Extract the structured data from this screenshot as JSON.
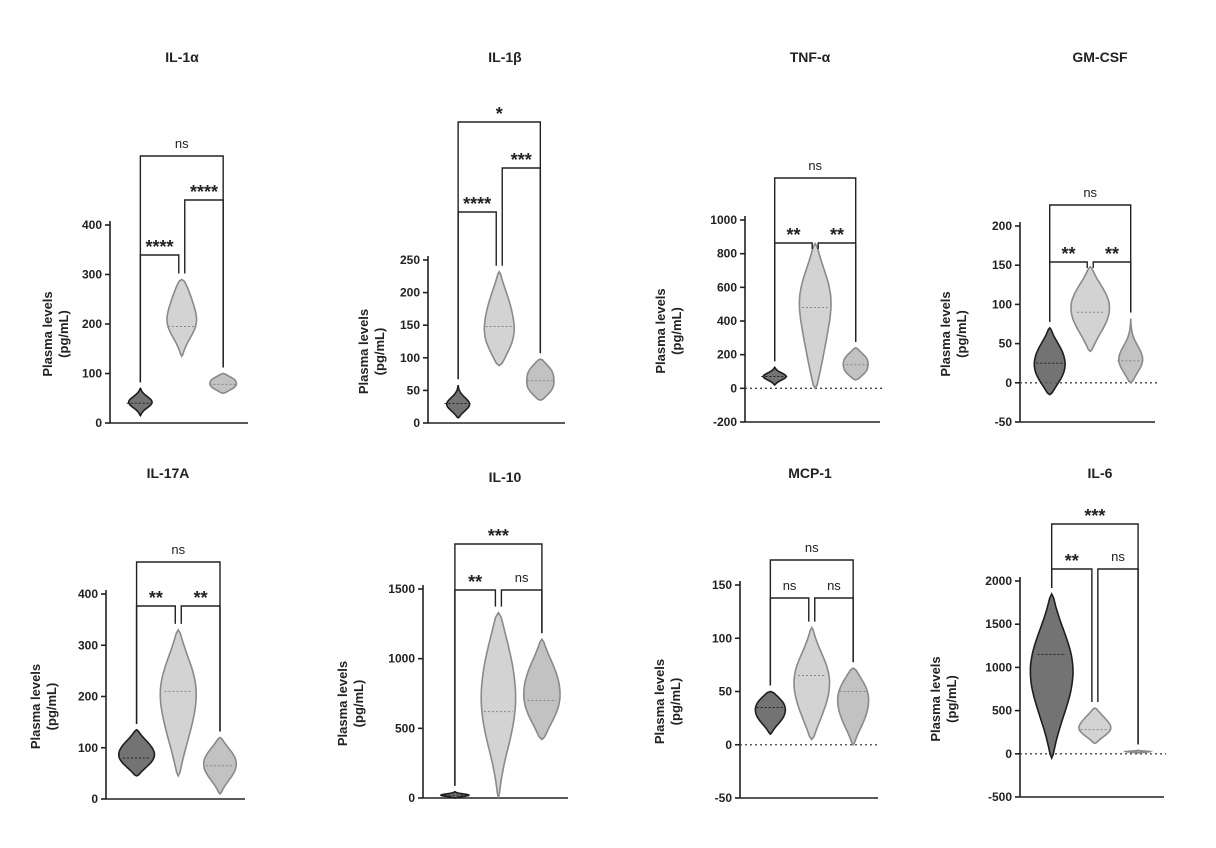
{
  "chart_data": [
    {
      "type": "violin",
      "title": "IL-1α",
      "ylabel_lines": [
        "Plasma levels",
        "(pg/mL)"
      ],
      "ylim": [
        0,
        400
      ],
      "yticks": [
        0,
        100,
        200,
        300,
        400
      ],
      "zero_line": false,
      "groups": [
        {
          "color": "#5a5a5a",
          "min": 15,
          "max": 70,
          "median": 40,
          "modes": [
            42
          ],
          "width": [
            0.35
          ]
        },
        {
          "color": "#c0c0c0",
          "min": 135,
          "max": 290,
          "median": 195,
          "modes": [
            200,
            265
          ],
          "width": [
            0.4,
            0.22
          ]
        },
        {
          "color": "#a8a8a8",
          "min": 60,
          "max": 100,
          "median": 78,
          "modes": [
            72,
            88
          ],
          "width": [
            0.3,
            0.3
          ]
        }
      ],
      "comparisons": [
        {
          "from": 1,
          "to": 2,
          "label": "****"
        },
        {
          "from": 2,
          "to": 3,
          "label": "****"
        },
        {
          "from": 1,
          "to": 3,
          "label": "ns"
        }
      ]
    },
    {
      "type": "violin",
      "title": "IL-1β",
      "ylabel_lines": [
        "Plasma levels",
        "(pg/mL)"
      ],
      "ylim": [
        0,
        250
      ],
      "yticks": [
        0,
        50,
        100,
        150,
        200,
        250
      ],
      "zero_line": false,
      "groups": [
        {
          "color": "#5a5a5a",
          "min": 8,
          "max": 58,
          "median": 30,
          "modes": [
            28
          ],
          "width": [
            0.35
          ]
        },
        {
          "color": "#c0c0c0",
          "min": 88,
          "max": 232,
          "median": 148,
          "modes": [
            128,
            185
          ],
          "width": [
            0.4,
            0.25
          ]
        },
        {
          "color": "#a8a8a8",
          "min": 35,
          "max": 98,
          "median": 65,
          "modes": [
            52,
            80
          ],
          "width": [
            0.35,
            0.33
          ]
        }
      ],
      "comparisons": [
        {
          "from": 1,
          "to": 2,
          "label": "****"
        },
        {
          "from": 2,
          "to": 3,
          "label": "***"
        },
        {
          "from": 1,
          "to": 3,
          "label": "*"
        }
      ]
    },
    {
      "type": "violin",
      "title": "TNF-α",
      "ylabel_lines": [
        "Plasma levels",
        "(pg/mL)"
      ],
      "ylim": [
        -200,
        1000
      ],
      "yticks": [
        -200,
        0,
        200,
        400,
        600,
        800,
        1000
      ],
      "zero_line": true,
      "groups": [
        {
          "color": "#5a5a5a",
          "min": 20,
          "max": 125,
          "median": 70,
          "modes": [
            70
          ],
          "width": [
            0.35
          ]
        },
        {
          "color": "#c0c0c0",
          "min": 0,
          "max": 860,
          "median": 480,
          "modes": [
            200,
            560
          ],
          "width": [
            0.22,
            0.45
          ]
        },
        {
          "color": "#a8a8a8",
          "min": 50,
          "max": 240,
          "median": 140,
          "modes": [
            100,
            180
          ],
          "width": [
            0.3,
            0.3
          ]
        }
      ],
      "comparisons": [
        {
          "from": 1,
          "to": 2,
          "label": "**"
        },
        {
          "from": 2,
          "to": 3,
          "label": "**"
        },
        {
          "from": 1,
          "to": 3,
          "label": "ns"
        }
      ]
    },
    {
      "type": "violin",
      "title": "GM-CSF",
      "ylabel_lines": [
        "Plasma levels",
        "(pg/mL)"
      ],
      "ylim": [
        -50,
        200
      ],
      "yticks": [
        -50,
        0,
        50,
        100,
        150,
        200
      ],
      "zero_line": true,
      "groups": [
        {
          "color": "#5a5a5a",
          "min": -15,
          "max": 70,
          "median": 25,
          "modes": [
            10,
            40
          ],
          "width": [
            0.35,
            0.3
          ]
        },
        {
          "color": "#c0c0c0",
          "min": 40,
          "max": 148,
          "median": 90,
          "modes": [
            75,
            110
          ],
          "width": [
            0.35,
            0.42
          ]
        },
        {
          "color": "#a8a8a8",
          "min": 0,
          "max": 82,
          "median": 28,
          "modes": [
            28
          ],
          "width": [
            0.38
          ]
        }
      ],
      "comparisons": [
        {
          "from": 1,
          "to": 2,
          "label": "**"
        },
        {
          "from": 2,
          "to": 3,
          "label": "**"
        },
        {
          "from": 1,
          "to": 3,
          "label": "ns"
        }
      ]
    },
    {
      "type": "violin",
      "title": "IL-17A",
      "ylabel_lines": [
        "Plasma levels",
        "(pg/mL)"
      ],
      "ylim": [
        0,
        400
      ],
      "yticks": [
        0,
        100,
        200,
        300,
        400
      ],
      "zero_line": false,
      "groups": [
        {
          "color": "#5a5a5a",
          "min": 45,
          "max": 135,
          "median": 80,
          "modes": [
            75,
            105
          ],
          "width": [
            0.4,
            0.3
          ]
        },
        {
          "color": "#c0c0c0",
          "min": 45,
          "max": 330,
          "median": 210,
          "modes": [
            130,
            230
          ],
          "width": [
            0.25,
            0.45
          ]
        },
        {
          "color": "#a8a8a8",
          "min": 10,
          "max": 120,
          "median": 65,
          "modes": [
            50,
            85
          ],
          "width": [
            0.3,
            0.33
          ]
        }
      ],
      "comparisons": [
        {
          "from": 1,
          "to": 2,
          "label": "**"
        },
        {
          "from": 2,
          "to": 3,
          "label": "**"
        },
        {
          "from": 1,
          "to": 3,
          "label": "ns"
        }
      ]
    },
    {
      "type": "violin",
      "title": "IL-10",
      "ylabel_lines": [
        "Plasma levels",
        "(pg/mL)"
      ],
      "ylim": [
        0,
        1500
      ],
      "yticks": [
        0,
        500,
        1000,
        1500
      ],
      "zero_line": false,
      "groups": [
        {
          "color": "#5a5a5a",
          "min": 0,
          "max": 45,
          "median": 20,
          "modes": [
            20
          ],
          "width": [
            0.4
          ]
        },
        {
          "color": "#c0c0c0",
          "min": 0,
          "max": 1330,
          "median": 620,
          "modes": [
            560,
            1000
          ],
          "width": [
            0.35,
            0.3
          ]
        },
        {
          "color": "#a8a8a8",
          "min": 420,
          "max": 1140,
          "median": 700,
          "modes": [
            640,
            900
          ],
          "width": [
            0.4,
            0.32
          ]
        }
      ],
      "comparisons": [
        {
          "from": 1,
          "to": 2,
          "label": "**"
        },
        {
          "from": 2,
          "to": 3,
          "label": "ns"
        },
        {
          "from": 1,
          "to": 3,
          "label": "***"
        }
      ]
    },
    {
      "type": "violin",
      "title": "MCP-1",
      "ylabel_lines": [
        "Plasma levels",
        "(pg/mL)"
      ],
      "ylim": [
        -50,
        150
      ],
      "yticks": [
        -50,
        0,
        50,
        100,
        150
      ],
      "zero_line": true,
      "groups": [
        {
          "color": "#5a5a5a",
          "min": 10,
          "max": 50,
          "median": 35,
          "modes": [
            25,
            40
          ],
          "width": [
            0.3,
            0.35
          ]
        },
        {
          "color": "#c0c0c0",
          "min": 5,
          "max": 110,
          "median": 65,
          "modes": [
            35,
            70
          ],
          "width": [
            0.3,
            0.4
          ]
        },
        {
          "color": "#a8a8a8",
          "min": 0,
          "max": 72,
          "median": 50,
          "modes": [
            25,
            52
          ],
          "width": [
            0.28,
            0.38
          ]
        }
      ],
      "comparisons": [
        {
          "from": 1,
          "to": 2,
          "label": "ns"
        },
        {
          "from": 2,
          "to": 3,
          "label": "ns"
        },
        {
          "from": 1,
          "to": 3,
          "label": "ns"
        }
      ]
    },
    {
      "type": "violin",
      "title": "IL-6",
      "ylabel_lines": [
        "Plasma levels",
        "(pg/mL)"
      ],
      "ylim": [
        -500,
        2000
      ],
      "yticks": [
        -500,
        0,
        500,
        1000,
        1500,
        2000
      ],
      "zero_line": true,
      "groups": [
        {
          "color": "#5a5a5a",
          "min": -50,
          "max": 1850,
          "median": 1150,
          "modes": [
            600,
            1150
          ],
          "width": [
            0.3,
            0.45
          ]
        },
        {
          "color": "#c0c0c0",
          "min": 120,
          "max": 530,
          "median": 280,
          "modes": [
            270,
            420
          ],
          "width": [
            0.4,
            0.2
          ]
        },
        {
          "color": "#a8a8a8",
          "min": 10,
          "max": 40,
          "median": 25,
          "modes": [
            25
          ],
          "width": [
            0.35
          ]
        }
      ],
      "comparisons": [
        {
          "from": 1,
          "to": 2,
          "label": "**"
        },
        {
          "from": 2,
          "to": 3,
          "label": "ns"
        },
        {
          "from": 1,
          "to": 3,
          "label": "***"
        }
      ]
    }
  ]
}
